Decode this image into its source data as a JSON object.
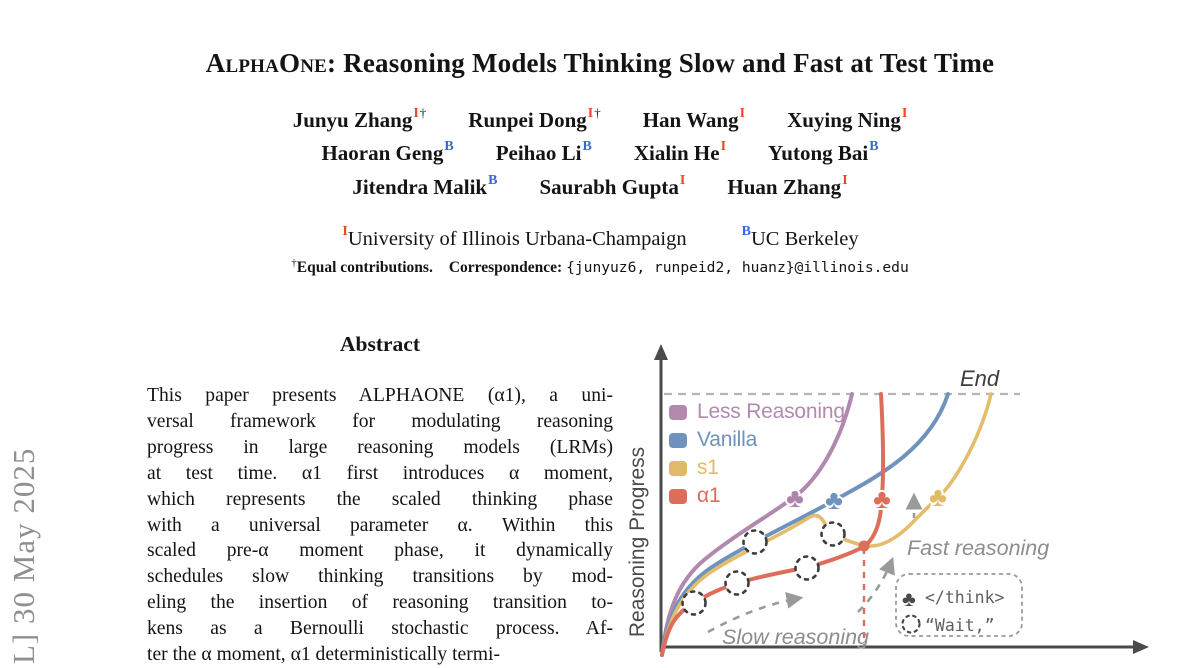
{
  "banner": {
    "text": "L]  30 May 2025"
  },
  "header": {
    "title_prefix": "AlphaOne:",
    "title_rest": " Reasoning Models Thinking Slow and Fast at Test Time",
    "author_rows": [
      [
        {
          "name": "Junyu Zhang",
          "sups": [
            {
              "text": "I",
              "type": "illinois"
            },
            {
              "text": "†",
              "type": "plain"
            }
          ]
        },
        {
          "name": "Runpei Dong",
          "sups": [
            {
              "text": "I",
              "type": "illinois"
            },
            {
              "text": "†",
              "type": "plain"
            }
          ]
        },
        {
          "name": "Han Wang",
          "sups": [
            {
              "text": "I",
              "type": "illinois"
            }
          ]
        },
        {
          "name": "Xuying Ning",
          "sups": [
            {
              "text": "I",
              "type": "illinois"
            }
          ]
        }
      ],
      [
        {
          "name": "Haoran Geng",
          "sups": [
            {
              "text": "B",
              "type": "berkeley"
            }
          ]
        },
        {
          "name": "Peihao Li",
          "sups": [
            {
              "text": "B",
              "type": "berkeley"
            }
          ]
        },
        {
          "name": "Xialin He",
          "sups": [
            {
              "text": "I",
              "type": "illinois"
            }
          ]
        },
        {
          "name": "Yutong Bai",
          "sups": [
            {
              "text": "B",
              "type": "berkeley"
            }
          ]
        }
      ],
      [
        {
          "name": "Jitendra Malik",
          "sups": [
            {
              "text": "B",
              "type": "berkeley"
            }
          ]
        },
        {
          "name": "Saurabh Gupta",
          "sups": [
            {
              "text": "I",
              "type": "illinois"
            }
          ]
        },
        {
          "name": "Huan Zhang",
          "sups": [
            {
              "text": "I",
              "type": "illinois"
            }
          ]
        }
      ]
    ],
    "affiliations": [
      {
        "marker": "I",
        "type": "illinois",
        "name": "University of Illinois Urbana-Champaign"
      },
      {
        "marker": "B",
        "type": "berkeley",
        "name": "UC Berkeley"
      }
    ],
    "footnote": {
      "marker": "†",
      "equal_text": "Equal contributions.",
      "correspondence_label": "Correspondence:",
      "correspondence_emails": "{junyuz6, runpeid2, huanz}@illinois.edu"
    }
  },
  "abstract": {
    "heading": "Abstract",
    "lines": [
      "This paper presents ALPHAONE (α1), a uni-",
      "versal framework for modulating reasoning",
      "progress in large reasoning models (LRMs)",
      "at test time.  α1 first introduces α moment,",
      "which represents the scaled thinking phase",
      "with a universal parameter α.  Within this",
      "scaled pre-α moment phase, it dynamically",
      "schedules slow thinking transitions by mod-",
      "eling the insertion of reasoning transition to-",
      "kens as a Bernoulli stochastic process.  Af-",
      "ter the α moment, α1 deterministically termi-"
    ]
  },
  "figure": {
    "y_axis_label": "Reasoning Progress",
    "end_label": "End",
    "slow_label": "Slow reasoning",
    "fast_label": "Fast reasoning",
    "legend": [
      {
        "label": "Less Reasoning",
        "color": "#b28ab0"
      },
      {
        "label": "Vanilla",
        "color": "#7093bd"
      },
      {
        "label": "s1",
        "color": "#e0ba66"
      },
      {
        "label": "α1",
        "color": "#dc6e5b"
      }
    ],
    "token_box": {
      "think_token": "</think>",
      "wait_token": "“Wait,”"
    }
  }
}
